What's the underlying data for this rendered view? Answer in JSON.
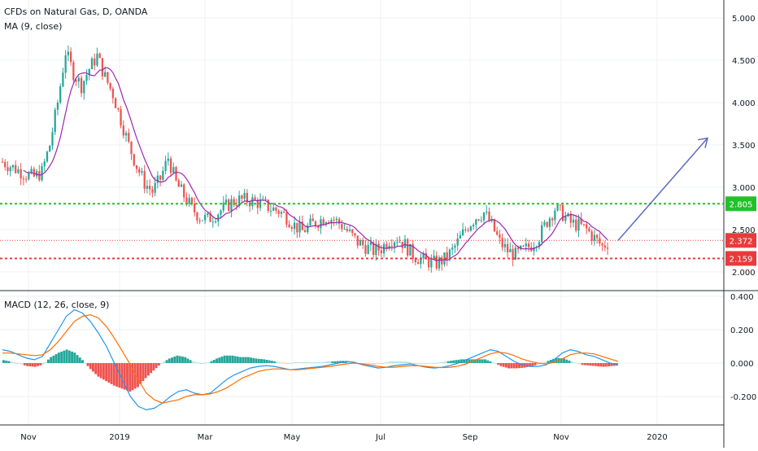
{
  "chart_data": {
    "type": "candlestick",
    "title": "CFDs on Natural Gas, D, OANDA",
    "indicator_label": "MA (9, close)",
    "macd_label": "MACD (12, 26, close, 9)",
    "x_ticks": [
      "Nov",
      "2019",
      "Mar",
      "May",
      "Jul",
      "Sep",
      "Nov",
      "2020"
    ],
    "price_axis": {
      "ticks": [
        "5.000",
        "4.500",
        "4.000",
        "3.500",
        "3.000",
        "2.500",
        "2.000"
      ],
      "ylim": [
        1.85,
        5.2
      ]
    },
    "macd_axis": {
      "ticks": [
        "0.400",
        "0.200",
        "0.000",
        "-0.200"
      ],
      "ylim": [
        -0.34,
        0.42
      ]
    },
    "levels": [
      {
        "label": "2.805",
        "value": 2.805,
        "style": "dotted",
        "color": "#22c12a"
      },
      {
        "label": "2.372",
        "value": 2.372,
        "style": "thin-dotted",
        "color": "#e83b3b"
      },
      {
        "label": "2.159",
        "value": 2.159,
        "style": "dotted",
        "color": "#e83b3b"
      }
    ],
    "projection_arrow": {
      "from": 2.372,
      "to": 3.58
    },
    "close_path": [
      3.3,
      3.25,
      3.2,
      3.15,
      3.12,
      3.18,
      3.5,
      4.0,
      4.6,
      4.35,
      4.2,
      4.4,
      4.55,
      4.3,
      4.1,
      3.8,
      3.5,
      3.25,
      3.05,
      2.95,
      3.1,
      3.35,
      3.05,
      2.9,
      2.75,
      2.65,
      2.62,
      2.68,
      2.75,
      2.82,
      2.85,
      2.85,
      2.83,
      2.8,
      2.75,
      2.72,
      2.65,
      2.55,
      2.48,
      2.55,
      2.6,
      2.65,
      2.62,
      2.55,
      2.45,
      2.35,
      2.3,
      2.25,
      2.28,
      2.38,
      2.4,
      2.32,
      2.2,
      2.15,
      2.12,
      2.1,
      2.15,
      2.25,
      2.4,
      2.55,
      2.65,
      2.7,
      2.55,
      2.35,
      2.25,
      2.2,
      2.25,
      2.32,
      2.42,
      2.6,
      2.75,
      2.68,
      2.58,
      2.55,
      2.5,
      2.4,
      2.3,
      2.37
    ],
    "macd_path": [
      0.08,
      0.07,
      0.05,
      0.03,
      0.02,
      0.04,
      0.12,
      0.2,
      0.28,
      0.32,
      0.3,
      0.25,
      0.18,
      0.1,
      0.0,
      -0.1,
      -0.2,
      -0.26,
      -0.28,
      -0.27,
      -0.24,
      -0.2,
      -0.17,
      -0.16,
      -0.18,
      -0.19,
      -0.18,
      -0.14,
      -0.1,
      -0.07,
      -0.05,
      -0.03,
      -0.02,
      -0.015,
      -0.02,
      -0.03,
      -0.04,
      -0.035,
      -0.03,
      -0.025,
      -0.02,
      -0.01,
      0.0,
      0.01,
      0.005,
      -0.01,
      -0.02,
      -0.03,
      -0.025,
      -0.015,
      -0.01,
      -0.005,
      -0.015,
      -0.025,
      -0.03,
      -0.025,
      -0.015,
      0.0,
      0.02,
      0.04,
      0.06,
      0.08,
      0.07,
      0.04,
      0.01,
      -0.01,
      -0.02,
      -0.02,
      -0.01,
      0.02,
      0.06,
      0.08,
      0.07,
      0.05,
      0.04,
      0.02,
      0.0,
      -0.01
    ],
    "signal_path": [
      0.06,
      0.06,
      0.055,
      0.05,
      0.045,
      0.05,
      0.08,
      0.13,
      0.19,
      0.25,
      0.28,
      0.29,
      0.27,
      0.22,
      0.15,
      0.07,
      -0.01,
      -0.1,
      -0.18,
      -0.22,
      -0.24,
      -0.23,
      -0.22,
      -0.2,
      -0.19,
      -0.19,
      -0.185,
      -0.17,
      -0.15,
      -0.12,
      -0.09,
      -0.07,
      -0.05,
      -0.04,
      -0.035,
      -0.035,
      -0.04,
      -0.04,
      -0.035,
      -0.03,
      -0.025,
      -0.02,
      -0.012,
      -0.005,
      0.0,
      -0.005,
      -0.012,
      -0.02,
      -0.025,
      -0.025,
      -0.02,
      -0.015,
      -0.015,
      -0.02,
      -0.025,
      -0.027,
      -0.025,
      -0.018,
      -0.005,
      0.015,
      0.035,
      0.055,
      0.065,
      0.06,
      0.045,
      0.025,
      0.01,
      0.0,
      -0.005,
      0.005,
      0.025,
      0.05,
      0.06,
      0.06,
      0.055,
      0.04,
      0.025,
      0.01
    ]
  },
  "colors": {
    "up": "#26a69a",
    "down": "#ef5350",
    "ma": "#9c27b0",
    "macd_line": "#2196f3",
    "signal_line": "#ff6d00",
    "arrow": "#5b6bbf"
  }
}
